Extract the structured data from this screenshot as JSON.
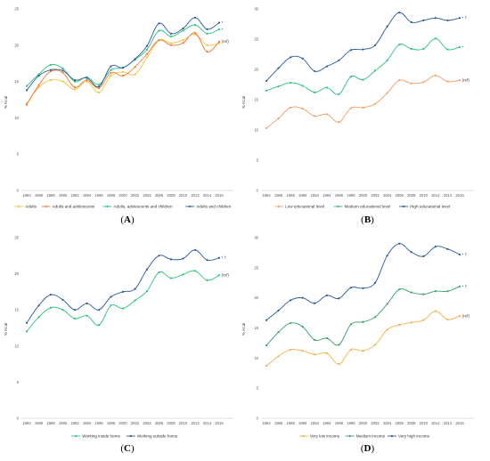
{
  "chart_data": [
    {
      "type": "line",
      "panel": "A",
      "x": [
        1984,
        1986,
        1988,
        1990,
        1992,
        1994,
        1996,
        1998,
        2000,
        2002,
        2004,
        2006,
        2008,
        2010,
        2012,
        2014,
        2016
      ],
      "ylabel": "% Kcal",
      "ylim": [
        0,
        25
      ],
      "yticks": [
        0,
        5,
        10,
        15,
        20,
        25
      ],
      "grid": false,
      "legend": "bottom",
      "series": [
        {
          "name": "Adults",
          "color": "#f5c242",
          "values": [
            12.0,
            14.2,
            15.2,
            15.0,
            13.9,
            15.0,
            13.5,
            15.8,
            16.3,
            16.0,
            18.3,
            20.7,
            20.3,
            20.7,
            21.5,
            20.0,
            20.3
          ],
          "annotation": ""
        },
        {
          "name": "Adults and adolescents",
          "color": "#f07d3b",
          "values": [
            11.8,
            14.5,
            16.4,
            16.2,
            14.2,
            15.2,
            14.1,
            16.2,
            15.8,
            17.0,
            18.8,
            20.7,
            20.0,
            20.3,
            21.7,
            19.1,
            20.5
          ],
          "annotation": "(ref)"
        },
        {
          "name": "Adults, adolescents and children",
          "color": "#2ec27e",
          "values": [
            14.4,
            16.0,
            17.3,
            16.8,
            15.0,
            15.6,
            14.6,
            16.6,
            16.9,
            18.0,
            19.4,
            22.0,
            21.2,
            22.0,
            22.8,
            21.6,
            22.2
          ],
          "annotation": "*"
        },
        {
          "name": "Adults and children",
          "color": "#2a5a9c",
          "values": [
            13.8,
            15.8,
            16.6,
            16.5,
            15.2,
            15.5,
            14.3,
            17.1,
            16.9,
            18.1,
            19.9,
            23.0,
            21.6,
            22.3,
            23.8,
            22.2,
            23.1
          ],
          "annotation": "*"
        }
      ],
      "panel_label": "A"
    },
    {
      "type": "line",
      "panel": "B",
      "x": [
        1984,
        1986,
        1988,
        1990,
        1992,
        1994,
        1996,
        1998,
        2000,
        2002,
        2004,
        2006,
        2008,
        2010,
        2012,
        2014,
        2016
      ],
      "ylabel": "% Kcal",
      "ylim": [
        0,
        30
      ],
      "yticks": [
        0,
        5,
        10,
        15,
        20,
        25,
        30
      ],
      "grid": false,
      "legend": "bottom",
      "series": [
        {
          "name": "Low educational level",
          "color": "#f0a06a",
          "values": [
            10.3,
            11.9,
            13.7,
            13.5,
            12.3,
            12.6,
            11.3,
            13.6,
            13.7,
            14.3,
            16.1,
            18.2,
            17.7,
            17.9,
            19.0,
            18.0,
            18.2
          ],
          "annotation": "(ref)"
        },
        {
          "name": "Medium educational level",
          "color": "#2ec27e",
          "values": [
            16.5,
            17.2,
            17.8,
            17.3,
            16.2,
            17.0,
            15.9,
            18.8,
            18.3,
            19.8,
            21.5,
            24.1,
            23.4,
            23.4,
            25.1,
            23.3,
            23.7
          ],
          "annotation": "*"
        },
        {
          "name": "High educational level",
          "color": "#2a5a9c",
          "values": [
            18.1,
            20.2,
            22.0,
            21.8,
            19.7,
            20.5,
            21.5,
            23.2,
            23.3,
            24.0,
            27.1,
            29.4,
            27.8,
            28.1,
            28.5,
            28.1,
            28.5
          ],
          "annotation": "* †"
        }
      ],
      "panel_label": "B"
    },
    {
      "type": "line",
      "panel": "C",
      "x": [
        1984,
        1986,
        1988,
        1990,
        1992,
        1994,
        1996,
        1998,
        2000,
        2002,
        2004,
        2006,
        2008,
        2010,
        2012,
        2014,
        2016
      ],
      "ylabel": "% Kcal",
      "ylim": [
        0,
        25
      ],
      "yticks": [
        0,
        5,
        10,
        15,
        20,
        25
      ],
      "grid": false,
      "legend": "bottom",
      "series": [
        {
          "name": "Working inside home",
          "color": "#2ec27e",
          "values": [
            12.0,
            14.0,
            15.3,
            15.0,
            13.8,
            14.2,
            12.9,
            15.6,
            15.2,
            16.3,
            17.6,
            20.2,
            19.4,
            19.9,
            20.4,
            19.1,
            19.8
          ],
          "annotation": "(ref)"
        },
        {
          "name": "Working outside home",
          "color": "#2a5a9c",
          "values": [
            13.2,
            15.6,
            17.1,
            16.4,
            15.0,
            15.9,
            15.0,
            16.8,
            17.5,
            17.9,
            20.6,
            22.5,
            22.0,
            22.1,
            23.3,
            21.9,
            22.2
          ],
          "annotation": "* †"
        }
      ],
      "panel_label": "C"
    },
    {
      "type": "line",
      "panel": "D",
      "x": [
        1984,
        1986,
        1988,
        1990,
        1992,
        1994,
        1996,
        1998,
        2000,
        2002,
        2004,
        2006,
        2008,
        2010,
        2012,
        2014,
        2016
      ],
      "ylabel": "% Kcal",
      "ylim": [
        0,
        30
      ],
      "yticks": [
        0,
        5,
        10,
        15,
        20,
        25,
        30
      ],
      "grid": false,
      "legend": "bottom",
      "series": [
        {
          "name": "Very low income",
          "color": "#f5b24a",
          "values": [
            8.7,
            10.3,
            11.4,
            11.2,
            10.6,
            10.8,
            9.0,
            11.4,
            11.2,
            12.2,
            14.7,
            15.5,
            15.9,
            16.3,
            17.8,
            16.4,
            17.0
          ],
          "annotation": "(ref)"
        },
        {
          "name": "Medium income",
          "color": "#3aa16a",
          "values": [
            12.1,
            14.3,
            15.8,
            15.2,
            13.0,
            13.3,
            12.2,
            15.6,
            16.0,
            16.8,
            19.0,
            21.4,
            20.9,
            20.6,
            21.1,
            21.1,
            21.9
          ],
          "annotation": "* †"
        },
        {
          "name": "Very high income",
          "color": "#2a5a9c",
          "values": [
            16.3,
            17.9,
            19.6,
            20.0,
            19.1,
            20.4,
            19.9,
            21.7,
            21.6,
            22.5,
            27.0,
            29.0,
            27.6,
            26.9,
            28.5,
            28.1,
            27.2
          ],
          "annotation": "* †"
        }
      ],
      "panel_label": "D"
    }
  ]
}
